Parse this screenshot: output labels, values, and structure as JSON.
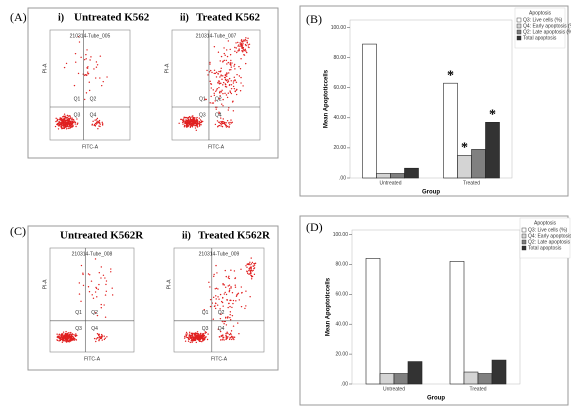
{
  "panels": [
    {
      "label": "(A)",
      "plots": [
        {
          "index": "i)",
          "title": "Untreated K562",
          "tube": "210314-Tube_005",
          "x_label": "FITC-A",
          "y_label": "PI-A",
          "quadrants": [
            "Q1",
            "Q2",
            "Q3",
            "Q4"
          ]
        },
        {
          "index": "ii)",
          "title": "Treated K562",
          "tube": "210314-Tube_007",
          "x_label": "FITC-A",
          "y_label": "PI-A",
          "quadrants": [
            "Q1",
            "Q2",
            "Q3",
            "Q4"
          ]
        }
      ]
    },
    {
      "label": "(C)",
      "plots": [
        {
          "title": "Untreated K562R",
          "tube": "210314-Tube_008",
          "x_label": "FITC-A",
          "y_label": "PI-A",
          "quadrants": [
            "Q1",
            "Q2",
            "Q3",
            "Q4"
          ]
        },
        {
          "index": "ii)",
          "title": "Treated K562R",
          "tube": "210314-Tube_009",
          "x_label": "FITC-A",
          "y_label": "PI-A",
          "quadrants": [
            "Q1",
            "Q2",
            "Q3",
            "Q4"
          ]
        }
      ]
    }
  ],
  "chart_data": [
    {
      "type": "bar",
      "panel_label": "(B)",
      "y_label": "Mean Apoptoticcells",
      "x_label": "Group",
      "legend_title": "Apoptosis",
      "categories": [
        "Untreated",
        "Treated"
      ],
      "series": [
        {
          "name": "Q3: Live cells (%)",
          "color": "#ffffff",
          "values": [
            89,
            63
          ]
        },
        {
          "name": "Q4: Early apoptosis (%)",
          "color": "#d4d4d4",
          "values": [
            3,
            15
          ]
        },
        {
          "name": "Q2: Late apoptosis (%)",
          "color": "#808080",
          "values": [
            3,
            19
          ]
        },
        {
          "name": "Total apoptosis",
          "color": "#333333",
          "values": [
            6.5,
            37
          ]
        }
      ],
      "ylim": [
        0,
        105
      ],
      "yticks": [
        {
          "value": 0,
          "label": ".00"
        },
        {
          "value": 20,
          "label": "20.00"
        },
        {
          "value": 40,
          "label": "40.00"
        },
        {
          "value": 60,
          "label": "60.00"
        },
        {
          "value": 80,
          "label": "80.00"
        },
        {
          "value": 100,
          "label": "100.00"
        }
      ],
      "annotations": [
        {
          "text": "*",
          "series": 0,
          "category": 1
        },
        {
          "text": "*",
          "series": 1,
          "category": 1
        },
        {
          "text": "*",
          "series": 3,
          "category": 1
        }
      ]
    },
    {
      "type": "bar",
      "panel_label": "(D)",
      "y_label": "Mean Apoptoticcells",
      "x_label": "Group",
      "legend_title": "Apoptosis",
      "categories": [
        "Untreated",
        "Treated"
      ],
      "series": [
        {
          "name": "Q3: Live cells (%)",
          "color": "#ffffff",
          "values": [
            84,
            82
          ]
        },
        {
          "name": "Q4: Early apoptosis (%)",
          "color": "#d4d4d4",
          "values": [
            7,
            8
          ]
        },
        {
          "name": "Q2: Late apoptosis (%)",
          "color": "#808080",
          "values": [
            7,
            7
          ]
        },
        {
          "name": "Total apoptosis",
          "color": "#333333",
          "values": [
            15,
            16
          ]
        }
      ],
      "ylim": [
        0,
        103
      ],
      "yticks": [
        {
          "value": 0,
          "label": ".00"
        },
        {
          "value": 20,
          "label": "20.00"
        },
        {
          "value": 40,
          "label": "40.00"
        },
        {
          "value": 60,
          "label": "60.00"
        },
        {
          "value": 80,
          "label": "80.00"
        },
        {
          "value": 100,
          "label": "100.00"
        }
      ]
    }
  ]
}
